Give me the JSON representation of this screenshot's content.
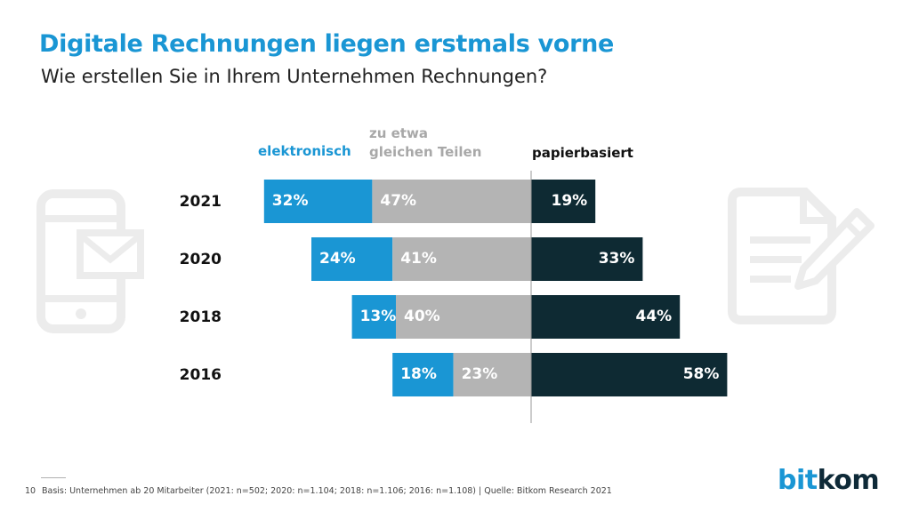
{
  "header": {
    "title": "Digitale Rechnungen liegen erstmals vorne",
    "subtitle": "Wie erstellen Sie in Ihrem Unternehmen Rechnungen?"
  },
  "legend": {
    "electronic": "elektronisch",
    "equal_line1": "zu etwa",
    "equal_line2": "gleichen Teilen",
    "paper": "papierbasiert"
  },
  "colors": {
    "electronic": "#1a96d4",
    "equal": "#b4b4b4",
    "paper": "#0e2a33",
    "icon": "#ececec"
  },
  "chart_data": {
    "type": "bar",
    "orientation": "horizontal-diverging",
    "title": "Digitale Rechnungen liegen erstmals vorne",
    "subtitle": "Wie erstellen Sie in Ihrem Unternehmen Rechnungen?",
    "categories": [
      "2021",
      "2020",
      "2018",
      "2016"
    ],
    "series": [
      {
        "name": "elektronisch",
        "values": [
          32,
          24,
          13,
          18
        ],
        "labels": [
          "32%",
          "24%",
          "13%",
          "18%"
        ]
      },
      {
        "name": "zu etwa gleichen Teilen",
        "values": [
          47,
          41,
          40,
          23
        ],
        "labels": [
          "47%",
          "41%",
          "40%",
          "23%"
        ]
      },
      {
        "name": "papierbasiert",
        "values": [
          19,
          33,
          44,
          58
        ],
        "labels": [
          "19%",
          "33%",
          "44%",
          "58%"
        ]
      }
    ],
    "unit": "%",
    "grid": false
  },
  "footer": {
    "page_number": "10",
    "basis": "Basis: Unternehmen ab 20 Mitarbeiter (2021: n=502; 2020: n=1.104; 2018: n=1.106; 2016: n=1.108) | Quelle: Bitkom Research 2021"
  },
  "logo": {
    "part1": "bit",
    "part2": "kom"
  },
  "icons": {
    "left": "phone-mail-icon",
    "right": "document-pen-icon"
  }
}
